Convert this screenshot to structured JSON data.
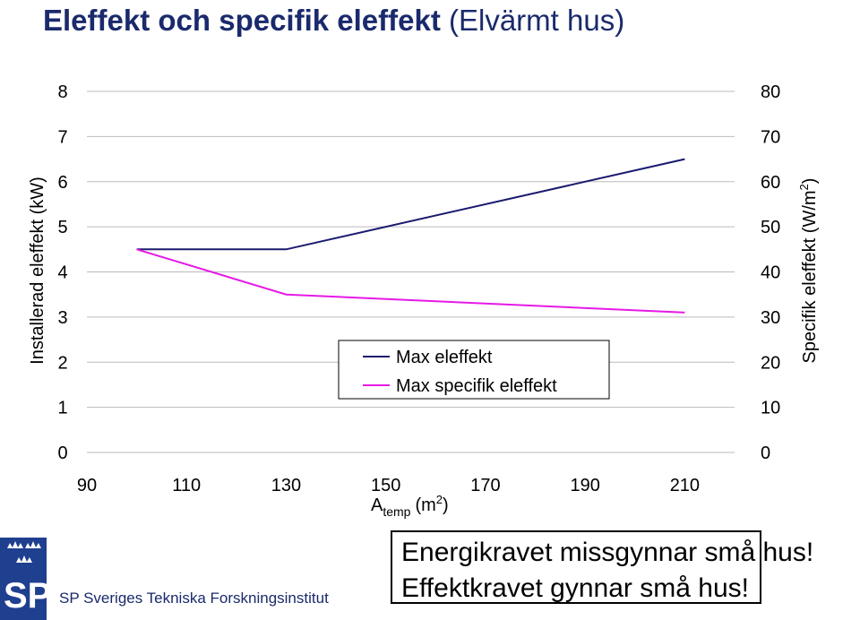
{
  "header": {
    "title_bold": "Eleffekt och specifik eleffekt",
    "title_paren": "(Elvärmt hus)"
  },
  "chart_data": {
    "type": "line",
    "x": [
      100,
      130,
      210
    ],
    "xticks": [
      "90",
      "110",
      "130",
      "150",
      "170",
      "190",
      "210"
    ],
    "xlim": [
      90,
      220
    ],
    "xlabel_main": "A",
    "xlabel_sub": "temp",
    "xlabel_unit_open": "(m",
    "xlabel_unit_sup": "2",
    "xlabel_unit_close": ")",
    "ylabel_left": "Installerad eleffekt (kW)",
    "ylim_left": [
      0,
      8
    ],
    "yticks_left": [
      "0",
      "1",
      "2",
      "3",
      "4",
      "5",
      "6",
      "7",
      "8"
    ],
    "ylabel_right_main": "Specifik eleffekt (W/m",
    "ylabel_right_sup": "2",
    "ylabel_right_close": ")",
    "ylim_right": [
      0,
      80
    ],
    "yticks_right": [
      "0",
      "10",
      "20",
      "30",
      "40",
      "50",
      "60",
      "70",
      "80"
    ],
    "grid": true,
    "legend_position": "bottom-center",
    "series": [
      {
        "name": "Max eleffekt",
        "axis": "left",
        "color": "#1a1a6e",
        "values": [
          4.5,
          4.5,
          6.5
        ]
      },
      {
        "name": "Max specifik eleffekt",
        "axis": "right",
        "color": "#e619e6",
        "values": [
          45,
          35,
          31
        ]
      }
    ]
  },
  "footer": {
    "logo_letters": "SP",
    "institute": "SP Sveriges Tekniska Forskningsinstitut",
    "message_line1": "Energikravet missgynnar små hus!",
    "message_line2": "Effektkravet gynnar små hus!"
  }
}
